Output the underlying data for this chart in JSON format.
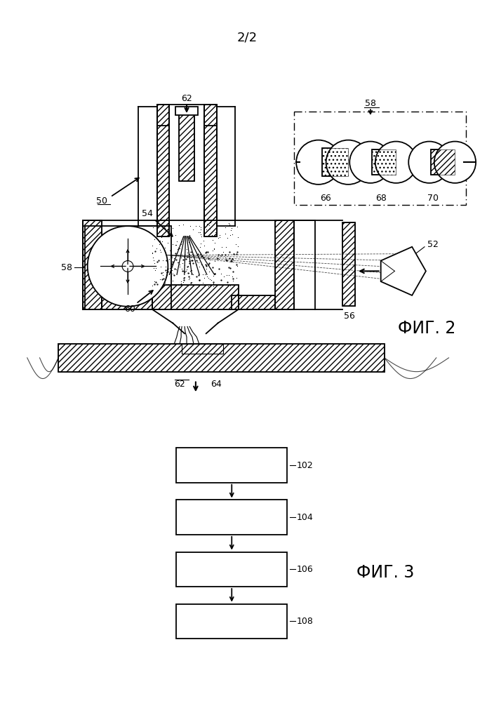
{
  "page_label": "2/2",
  "fig2_label": "ФИГ. 2",
  "fig3_label": "ФИГ. 3",
  "background_color": "#ffffff",
  "line_color": "#000000"
}
